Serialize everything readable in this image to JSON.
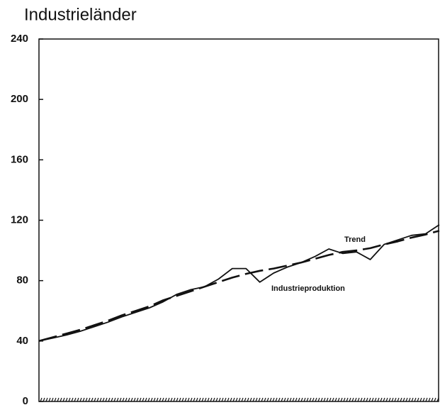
{
  "chart_data": {
    "type": "line",
    "title": "Industrieländer",
    "categories": [
      null,
      null,
      null,
      null,
      null,
      null,
      null,
      null,
      null,
      null,
      null,
      null,
      null,
      null,
      null,
      null,
      null,
      null,
      null,
      null,
      null,
      null,
      null,
      null,
      null,
      null,
      null,
      null,
      null,
      null
    ],
    "series": [
      {
        "name": "Industrieproduktion",
        "color": "#111111",
        "dashed": false,
        "values": [
          40,
          42,
          44,
          46.5,
          49.5,
          52.5,
          56,
          59,
          62,
          66,
          71,
          74,
          76,
          81,
          88,
          88,
          79,
          85,
          89,
          92,
          96,
          101,
          98,
          99,
          94,
          104,
          107,
          110,
          111,
          117
        ]
      },
      {
        "name": "Trend",
        "color": "#111111",
        "dashed": true,
        "values": [
          40,
          42.5,
          45,
          47.5,
          50.5,
          53.5,
          57,
          60,
          63,
          67,
          70,
          73,
          76,
          79,
          82,
          84.5,
          86.5,
          88,
          90,
          92,
          94.5,
          97,
          99,
          100,
          101.5,
          104,
          106,
          108.5,
          110.5,
          113
        ]
      }
    ],
    "ylim": [
      0,
      240
    ],
    "yticks": [
      0,
      40,
      80,
      120,
      160,
      200,
      240
    ],
    "grid": false
  }
}
